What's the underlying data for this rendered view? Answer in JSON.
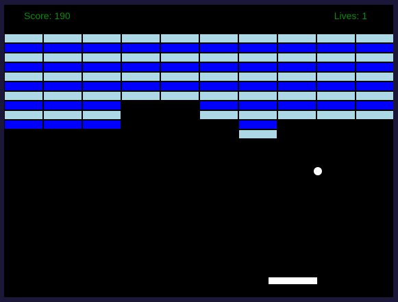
{
  "hud": {
    "score_label": "Score: 190",
    "lives_label": "Lives: 1"
  },
  "colors": {
    "frame": "#1b1738",
    "background": "#000000",
    "hud_text": "#0a8a0a",
    "brick_blue": "#0000ff",
    "brick_light": "#add8e6",
    "ball": "#ffffff",
    "paddle": "#ffffff"
  },
  "bricks": {
    "columns": 10,
    "rows": [
      {
        "color": "light",
        "present": [
          1,
          1,
          1,
          1,
          1,
          1,
          1,
          1,
          1,
          1
        ]
      },
      {
        "color": "blue",
        "present": [
          1,
          1,
          1,
          1,
          1,
          1,
          1,
          1,
          1,
          1
        ]
      },
      {
        "color": "light",
        "present": [
          1,
          1,
          1,
          1,
          1,
          1,
          1,
          1,
          1,
          1
        ]
      },
      {
        "color": "blue",
        "present": [
          1,
          1,
          1,
          1,
          1,
          1,
          1,
          1,
          1,
          1
        ]
      },
      {
        "color": "light",
        "present": [
          1,
          1,
          1,
          1,
          1,
          1,
          1,
          1,
          1,
          1
        ]
      },
      {
        "color": "blue",
        "present": [
          1,
          1,
          1,
          1,
          1,
          1,
          1,
          1,
          1,
          1
        ]
      },
      {
        "color": "light",
        "present": [
          1,
          1,
          1,
          1,
          1,
          1,
          1,
          1,
          1,
          1
        ]
      },
      {
        "color": "blue",
        "present": [
          1,
          1,
          1,
          0,
          0,
          1,
          1,
          1,
          1,
          1
        ]
      },
      {
        "color": "light",
        "present": [
          1,
          1,
          1,
          0,
          0,
          1,
          1,
          1,
          1,
          1
        ]
      },
      {
        "color": "blue",
        "present": [
          1,
          1,
          1,
          0,
          0,
          0,
          1,
          0,
          0,
          0
        ]
      },
      {
        "color": "light",
        "present": [
          0,
          0,
          0,
          0,
          0,
          0,
          1,
          0,
          0,
          0
        ]
      }
    ]
  }
}
